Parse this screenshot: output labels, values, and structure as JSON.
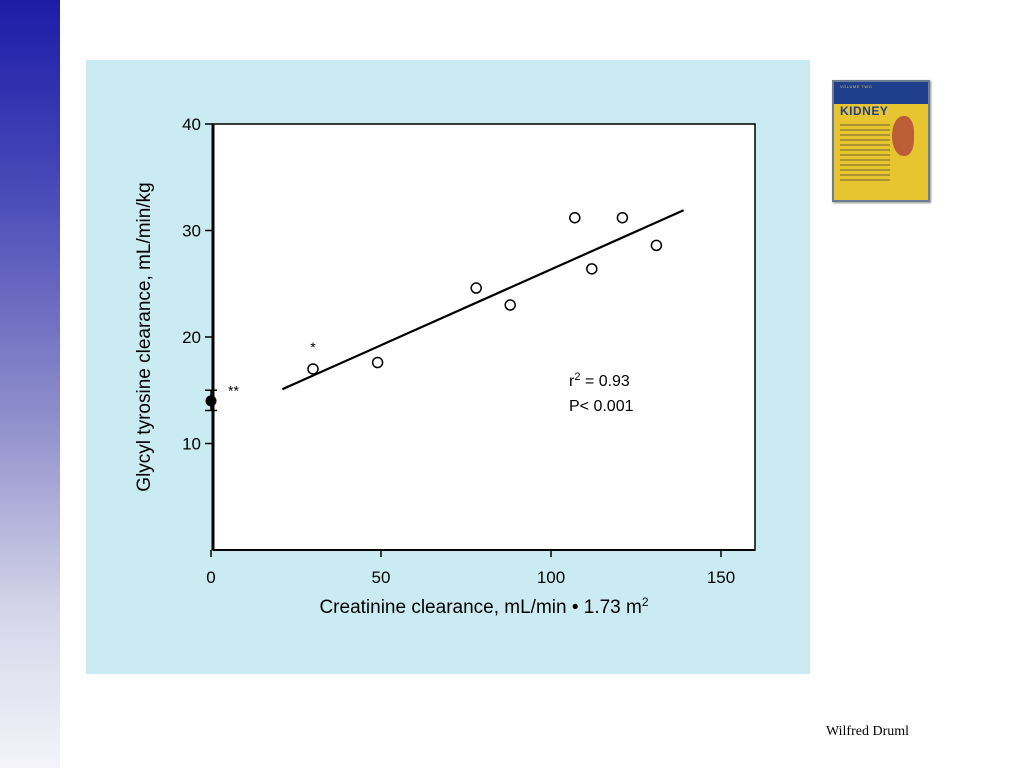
{
  "author": "Wilfred Druml",
  "book": {
    "title": "KIDNEY",
    "band_text": "VOLUME TWO"
  },
  "colors": {
    "panel": "#cbebf2",
    "gradient_top": "#1c1ca8",
    "book": "#e7c531"
  },
  "chart_data": {
    "type": "scatter",
    "xlabel": "Creatinine clearance, mL/min • 1.73 m",
    "xlabel_sup": "2",
    "ylabel": "Glycyl tyrosine clearance, mL/min/kg",
    "xlim": [
      0,
      160
    ],
    "ylim": [
      0,
      40
    ],
    "x_ticks": [
      0,
      50,
      100,
      150
    ],
    "y_ticks": [
      10,
      20,
      30,
      40
    ],
    "open_points": [
      {
        "x": 30,
        "y": 17.0
      },
      {
        "x": 49,
        "y": 17.6
      },
      {
        "x": 78,
        "y": 24.6
      },
      {
        "x": 88,
        "y": 23.0
      },
      {
        "x": 107,
        "y": 31.2
      },
      {
        "x": 112,
        "y": 26.4
      },
      {
        "x": 121,
        "y": 31.2
      },
      {
        "x": 131,
        "y": 28.6
      }
    ],
    "filled_point": {
      "x": 0,
      "y": 14.0,
      "err_low": 13.1,
      "err_high": 15.0
    },
    "regression": {
      "x1": 21,
      "y1": 15.1,
      "x2": 139,
      "y2": 31.9
    },
    "annotations": [
      {
        "text": "*",
        "x": 30,
        "y": 18.6
      },
      {
        "text": "**",
        "x": 5,
        "y": 14.5
      }
    ],
    "stats": {
      "r_label": "r",
      "r_sup": "2",
      "r_value": " = 0.93",
      "p_text": "P< 0.001"
    }
  }
}
